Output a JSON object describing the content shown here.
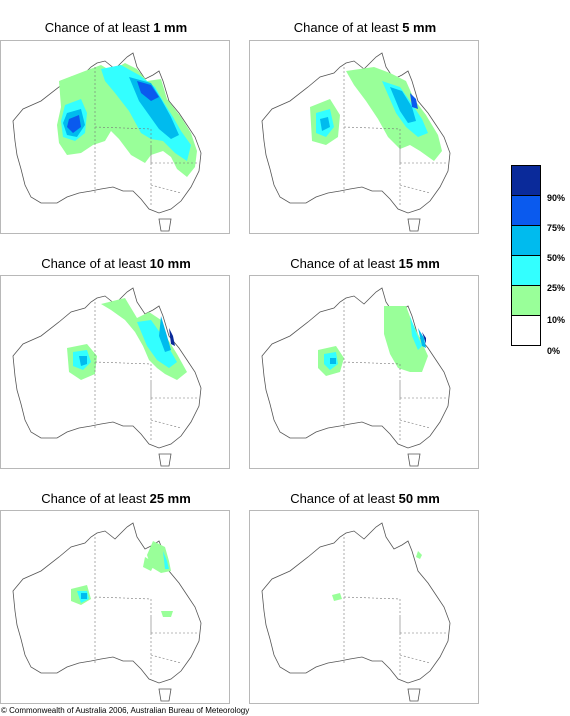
{
  "panels": [
    {
      "title_prefix": "Chance of at least",
      "threshold": "1 mm"
    },
    {
      "title_prefix": "Chance of at least",
      "threshold": "5 mm"
    },
    {
      "title_prefix": "Chance of at least",
      "threshold": "10 mm"
    },
    {
      "title_prefix": "Chance of at least",
      "threshold": "15 mm"
    },
    {
      "title_prefix": "Chance of at least",
      "threshold": "25 mm"
    },
    {
      "title_prefix": "Chance of at least",
      "threshold": "50 mm"
    }
  ],
  "legend": {
    "labels": [
      "90%",
      "75%",
      "50%",
      "25%",
      "10%",
      "0%"
    ],
    "colors": [
      "#0a2a9a",
      "#0a5aee",
      "#00bbee",
      "#33ffff",
      "#99ff99",
      "#ffffff"
    ]
  },
  "footer": "© Commonwealth of Australia 2006, Australian Bureau of Meteorology"
}
